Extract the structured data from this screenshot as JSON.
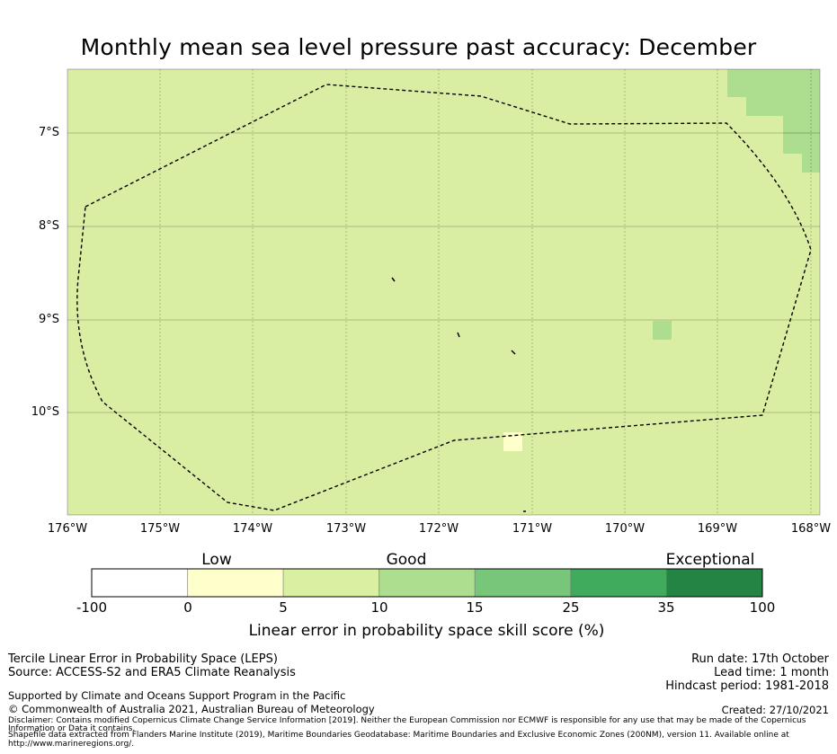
{
  "title": "Monthly mean sea level pressure past accuracy: December",
  "map": {
    "y_ticks": [
      "7°S",
      "8°S",
      "9°S",
      "10°S"
    ],
    "x_ticks": [
      "176°W",
      "175°W",
      "174°W",
      "173°W",
      "172°W",
      "171°W",
      "170°W",
      "169°W",
      "168°W"
    ],
    "base_color": "#d9eea3",
    "boundary": "Exclusive Economic Zone (dashed)"
  },
  "colorbar": {
    "categories": [
      "Low",
      "Good",
      "Exceptional"
    ],
    "ticks": [
      "-100",
      "0",
      "5",
      "10",
      "15",
      "25",
      "35",
      "100"
    ],
    "colors": [
      "#ffffff",
      "#ffffcc",
      "#d9f0a3",
      "#addd8e",
      "#78c679",
      "#41ab5d",
      "#238443"
    ],
    "label": "Linear error in probability space skill score (%)"
  },
  "info": {
    "method": "Tercile Linear Error in Probability Space (LEPS)",
    "source": "Source: ACCESS-S2 and ERA5 Climate Reanalysis",
    "run_date": "Run date: 17th October",
    "lead_time": "Lead time: 1 month",
    "hindcast": "Hindcast period: 1981-2018",
    "support": "Supported by Climate and Oceans Support Program in the Pacific",
    "copyright": "© Commonwealth of Australia 2021, Australian Bureau of Meteorology",
    "created": "Created: 27/10/2021",
    "disclaimer_1": "Disclaimer: Contains modified Copernicus Climate Change Service Information [2019]. Neither the European Commission nor ECMWF is responsible for any use that may be made of the Copernicus",
    "disclaimer_2": "Information or Data it contains.",
    "shapefile_1": "Shapefile data extracted from Flanders Marine Institute (2019), Maritime Boundaries Geodatabase: Maritime Boundaries and Exclusive Economic Zones (200NM), version 11. Available online at",
    "shapefile_2": "http://www.marineregions.org/."
  }
}
